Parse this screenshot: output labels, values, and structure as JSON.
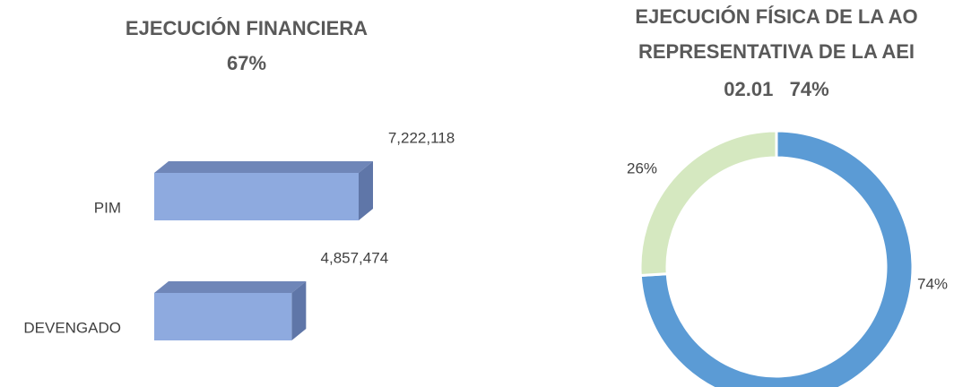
{
  "chart_data": [
    {
      "type": "bar3d",
      "title": "EJECUCIÓN FINANCIERA",
      "subtitle": "67%",
      "categories": [
        "PIM",
        "DEVENGADO"
      ],
      "values": [
        7222118,
        4857474
      ],
      "value_labels": [
        "7,222,118",
        "4,857,474"
      ],
      "color": "#8eaadf"
    },
    {
      "type": "donut",
      "title": [
        "EJECUCIÓN FÍSICA DE LA AO",
        "REPRESENTATIVA DE LA AEI",
        "02.01   74%"
      ],
      "values": [
        74,
        26
      ],
      "value_labels": [
        "74%",
        "26%"
      ],
      "colors": [
        "#5b9bd5",
        "#d5e8c0"
      ]
    }
  ]
}
